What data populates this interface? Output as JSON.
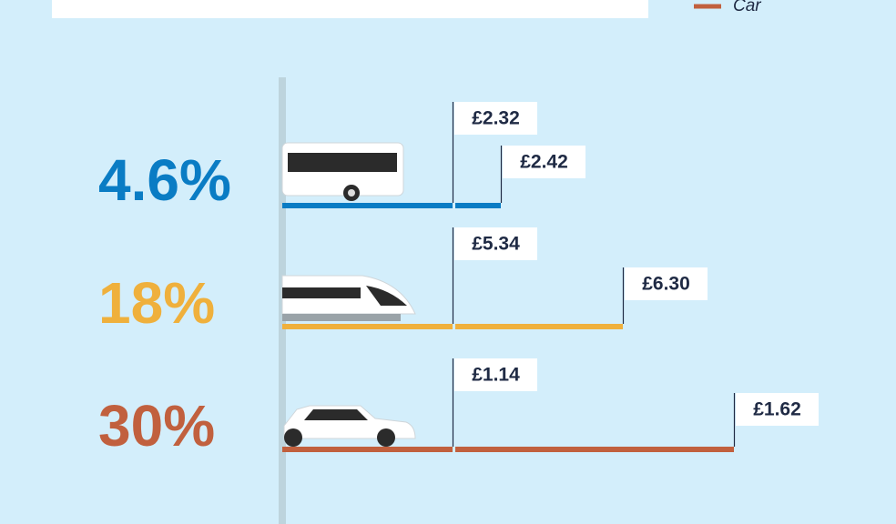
{
  "legend": {
    "items": [
      {
        "label": "Car",
        "color": "#c1603e"
      }
    ]
  },
  "rows": [
    {
      "percent": "4.6%",
      "color": "#0a7cc4",
      "prices": [
        "£2.32",
        "£2.42"
      ]
    },
    {
      "percent": "18%",
      "color": "#efb03c",
      "prices": [
        "£5.34",
        "£6.30"
      ]
    },
    {
      "percent": "30%",
      "color": "#c1603e",
      "prices": [
        "£1.14",
        "£1.62"
      ]
    }
  ]
}
